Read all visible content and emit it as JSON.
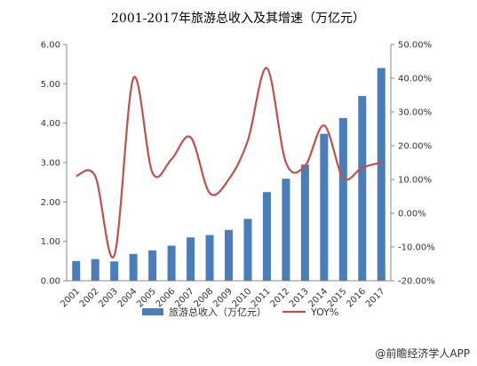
{
  "chart_data": {
    "type": "bar+line",
    "title": "2001-2017年旅游总收入及其增速（万亿元）",
    "categories": [
      "2001",
      "2002",
      "2003",
      "2004",
      "2005",
      "2006",
      "2007",
      "2008",
      "2009",
      "2010",
      "2011",
      "2012",
      "2013",
      "2014",
      "2015",
      "2016",
      "2017"
    ],
    "series": [
      {
        "name": "旅游总收入（万亿元）",
        "type": "bar",
        "axis": "left",
        "color": "#4a7ebb",
        "values": [
          0.5,
          0.55,
          0.49,
          0.68,
          0.77,
          0.89,
          1.1,
          1.16,
          1.29,
          1.57,
          2.25,
          2.59,
          2.95,
          3.73,
          4.13,
          4.69,
          5.4
        ]
      },
      {
        "name": "YOY%",
        "type": "line",
        "axis": "right",
        "color": "#c0504d",
        "values": [
          11.0,
          11.0,
          -12.5,
          40.0,
          12.0,
          16.0,
          22.5,
          6.0,
          10.0,
          21.5,
          43.0,
          15.0,
          14.0,
          26.0,
          10.5,
          13.5,
          15.0
        ]
      }
    ],
    "yleft": {
      "min": 0,
      "max": 6,
      "step": 1,
      "ticks": [
        "0.00",
        "1.00",
        "2.00",
        "3.00",
        "4.00",
        "5.00",
        "6.00"
      ]
    },
    "yright": {
      "min": -20,
      "max": 50,
      "step": 10,
      "ticks": [
        "-20.00%",
        "-10.00%",
        "0.00%",
        "10.00%",
        "20.00%",
        "30.00%",
        "40.00%",
        "50.00%"
      ]
    },
    "legend_position": "bottom",
    "grid": false
  },
  "credit": "@前瞻经济学人APP"
}
